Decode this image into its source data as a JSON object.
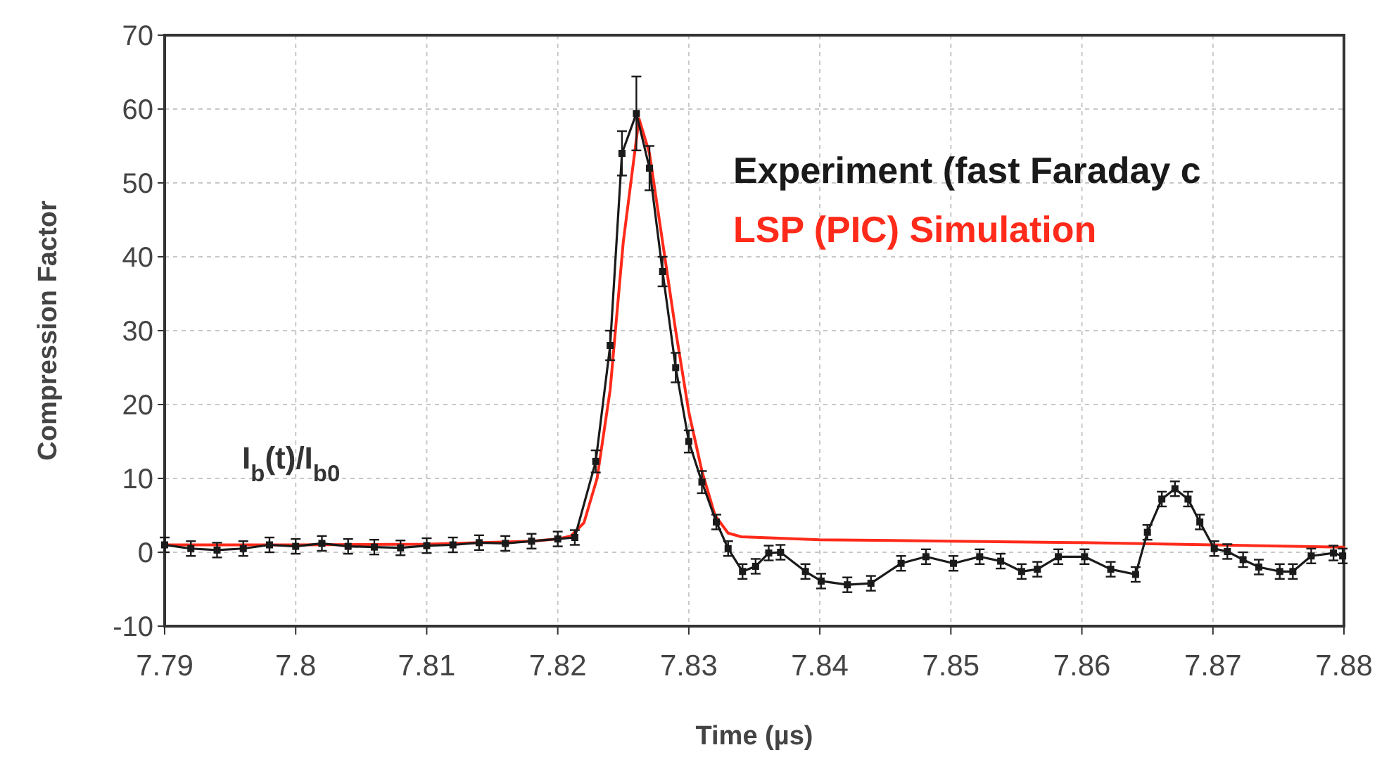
{
  "chart_data": {
    "type": "line",
    "xlabel": "Time (µs)",
    "ylabel": "Compression Factor",
    "xlim": [
      7.79,
      7.88
    ],
    "xticks": [
      7.79,
      7.8,
      7.81,
      7.82,
      7.83,
      7.84,
      7.85,
      7.86,
      7.87,
      7.88
    ],
    "ylim": [
      -10,
      70
    ],
    "yticks": [
      -10,
      0,
      10,
      20,
      30,
      40,
      50,
      60,
      70
    ],
    "grid": true,
    "legend": "top right",
    "line_style": "solid",
    "annotations": [
      "I$_{b}$(t)/I$_{b0}$"
    ],
    "series": [
      {
        "name": "Experiment (fast Faraday c",
        "color": "#1a1a1a",
        "marker": "square",
        "x": [
          7.79,
          7.792,
          7.794,
          7.796,
          7.798,
          7.8,
          7.802,
          7.804,
          7.806,
          7.808,
          7.81,
          7.812,
          7.814,
          7.816,
          7.818,
          7.82,
          7.8213,
          7.8229,
          7.824,
          7.8249,
          7.826,
          7.827,
          7.828,
          7.829,
          7.83,
          7.831,
          7.8321,
          7.833,
          7.8341,
          7.8351,
          7.8361,
          7.837,
          7.8389,
          7.8401,
          7.8421,
          7.8439,
          7.8462,
          7.8481,
          7.8502,
          7.8522,
          7.8538,
          7.8554,
          7.8566,
          7.8582,
          7.8602,
          7.8622,
          7.8641,
          7.865,
          7.8661,
          7.8671,
          7.8681,
          7.869,
          7.8701,
          7.8711,
          7.8723,
          7.8735,
          7.8751,
          7.8761,
          7.8775,
          7.8792,
          7.8799
        ],
        "values": [
          1,
          0.5,
          0.3,
          0.5,
          1,
          0.8,
          1.2,
          0.8,
          0.7,
          0.6,
          0.9,
          1,
          1.3,
          1.2,
          1.5,
          1.8,
          2,
          12.3,
          28,
          54,
          59.4,
          52,
          38,
          25,
          15,
          9.5,
          4.1,
          0.5,
          -2.6,
          -1.9,
          -0.1,
          0,
          -2.6,
          -3.9,
          -4.4,
          -4.2,
          -1.5,
          -0.6,
          -1.5,
          -0.6,
          -1.2,
          -2.6,
          -2.3,
          -0.6,
          -0.6,
          -2.3,
          -3,
          2.7,
          7.2,
          8.6,
          7.2,
          4.1,
          0.5,
          0.1,
          -1,
          -2,
          -2.6,
          -2.6,
          -0.5,
          -0.1,
          -0.5
        ],
        "errors": [
          1,
          1,
          1,
          1,
          1,
          1,
          1,
          1,
          1,
          1,
          1,
          1,
          1,
          1,
          1,
          1,
          1,
          1.5,
          2,
          3,
          5,
          3,
          2,
          2,
          1.5,
          1.5,
          1,
          1,
          1,
          1,
          1,
          1,
          1,
          1,
          1,
          1,
          1,
          1,
          1,
          1,
          1,
          1,
          1,
          1,
          1,
          1,
          1,
          1,
          1,
          1,
          1,
          1,
          1,
          1,
          1,
          1,
          1,
          1,
          1,
          1,
          1
        ]
      },
      {
        "name": "LSP (PIC) Simulation",
        "color": "#ff2a1a",
        "marker": "none",
        "x": [
          7.79,
          7.8,
          7.81,
          7.818,
          7.82,
          7.821,
          7.822,
          7.823,
          7.824,
          7.825,
          7.8262,
          7.827,
          7.828,
          7.829,
          7.83,
          7.831,
          7.832,
          7.833,
          7.834,
          7.84,
          7.85,
          7.86,
          7.87,
          7.88
        ],
        "values": [
          1,
          1,
          1.1,
          1.5,
          1.8,
          2.2,
          4,
          10,
          22,
          42,
          58.7,
          54,
          42,
          30,
          19,
          11,
          5,
          2.6,
          2.1,
          1.7,
          1.5,
          1.3,
          1,
          0.7
        ]
      }
    ]
  }
}
